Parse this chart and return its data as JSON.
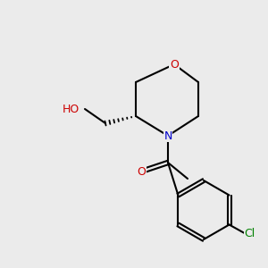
{
  "bg_color": "#ebebeb",
  "bond_color": "#000000",
  "bond_width": 1.5,
  "atom_colors": {
    "O": "#cc0000",
    "N": "#0000cc",
    "Cl": "#008000",
    "C": "#000000",
    "H": "#444444"
  },
  "font_size": 9,
  "font_size_small": 8
}
